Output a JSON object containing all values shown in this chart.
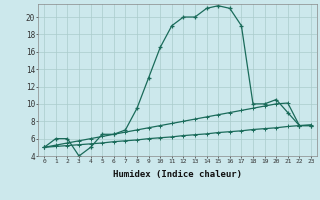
{
  "xlabel": "Humidex (Indice chaleur)",
  "bg_color": "#cce8ec",
  "grid_color": "#aacccc",
  "line_color": "#1a6b5a",
  "x_min": 0,
  "x_max": 23,
  "y_min": 4,
  "y_max": 21,
  "line1_x": [
    0,
    1,
    2,
    3,
    4,
    5,
    6,
    7,
    8,
    9,
    10,
    11,
    12,
    13,
    14,
    15,
    16,
    17,
    18,
    19,
    20,
    21,
    22,
    23
  ],
  "line1_y": [
    5,
    6,
    6,
    4,
    5,
    6.5,
    6.5,
    7,
    9.5,
    13,
    16.5,
    19,
    20,
    20,
    21,
    21.3,
    21,
    19,
    10,
    10,
    10.5,
    9,
    7.5,
    7.5
  ],
  "line2_x": [
    0,
    1,
    2,
    3,
    4,
    5,
    6,
    7,
    8,
    9,
    10,
    11,
    12,
    13,
    14,
    15,
    16,
    17,
    18,
    19,
    20,
    21,
    22,
    23
  ],
  "line2_y": [
    5.0,
    5.25,
    5.5,
    5.75,
    6.0,
    6.25,
    6.5,
    6.75,
    7.0,
    7.25,
    7.5,
    7.75,
    8.0,
    8.25,
    8.5,
    8.75,
    9.0,
    9.25,
    9.5,
    9.75,
    10.0,
    10.1,
    7.5,
    7.5
  ],
  "line3_x": [
    0,
    1,
    2,
    3,
    4,
    5,
    6,
    7,
    8,
    9,
    10,
    11,
    12,
    13,
    14,
    15,
    16,
    17,
    18,
    19,
    20,
    21,
    22,
    23
  ],
  "line3_y": [
    5.0,
    5.1,
    5.2,
    5.3,
    5.4,
    5.5,
    5.65,
    5.75,
    5.85,
    6.0,
    6.1,
    6.2,
    6.35,
    6.45,
    6.55,
    6.7,
    6.8,
    6.9,
    7.05,
    7.15,
    7.25,
    7.4,
    7.5,
    7.6
  ],
  "yticks": [
    4,
    6,
    8,
    10,
    12,
    14,
    16,
    18,
    20
  ],
  "xtick_labels": [
    "0",
    "1",
    "2",
    "3",
    "4",
    "5",
    "6",
    "7",
    "8",
    "9",
    "10",
    "11",
    "12",
    "13",
    "14",
    "15",
    "16",
    "17",
    "18",
    "19",
    "20",
    "21",
    "22",
    "23"
  ]
}
